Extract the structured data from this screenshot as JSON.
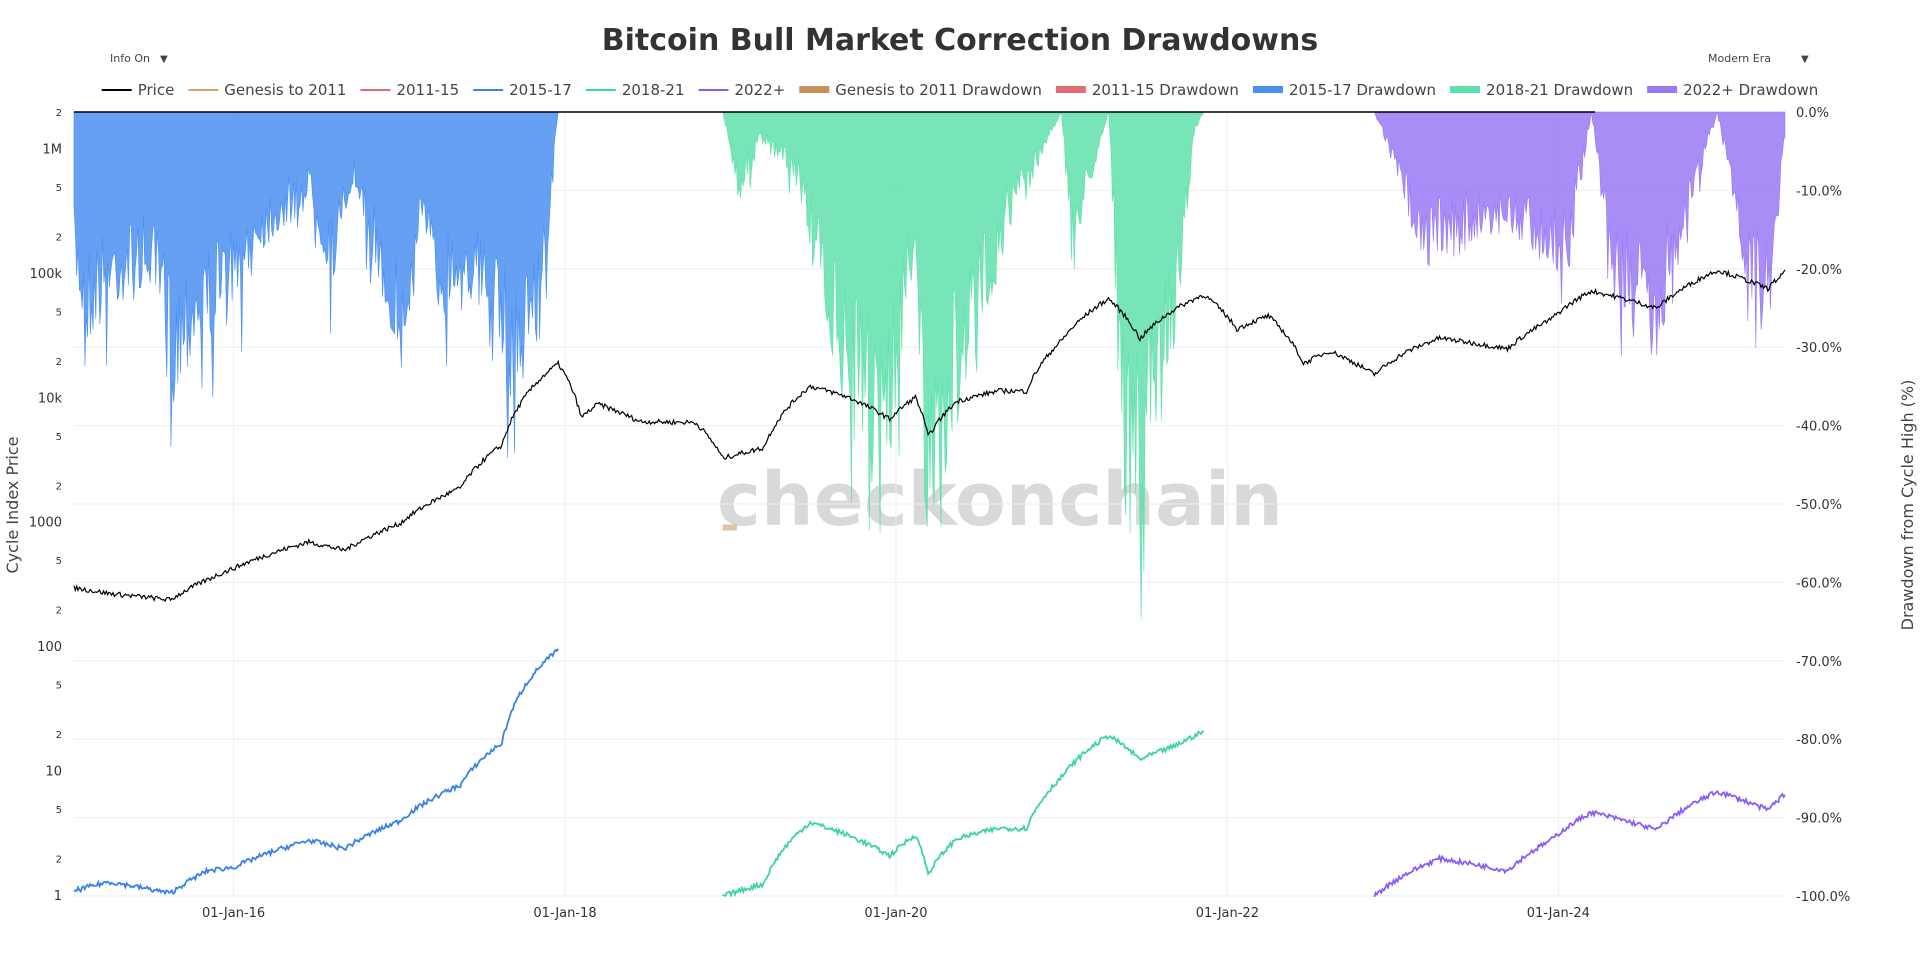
{
  "controls": {
    "left_dropdown": "Info On",
    "right_dropdown": "Modern Era",
    "dropdown_arrow": "▼"
  },
  "watermark": "checkonchain",
  "chart_data": {
    "type": "line",
    "title": "Bitcoin Bull Market Correction Drawdowns",
    "y_left_label": "Cycle Index Price",
    "y_right_label": "Drawdown from Cycle High (%)",
    "y_left_scale": "log",
    "y_left_range": [
      1,
      2000000
    ],
    "y_right_range": [
      -100,
      0
    ],
    "x_range": [
      "2015-01-14",
      "2025-05-15"
    ],
    "grid": true,
    "legend_position": "top-center",
    "x_ticks": [
      "01-Jan-16",
      "01-Jan-18",
      "01-Jan-20",
      "01-Jan-22",
      "01-Jan-24"
    ],
    "x_tick_dates": [
      "2016-01-01",
      "2018-01-01",
      "2020-01-01",
      "2022-01-01",
      "2024-01-01"
    ],
    "y_left_ticks": [
      "1",
      "2",
      "5",
      "10",
      "2",
      "5",
      "100",
      "2",
      "5",
      "1000",
      "2",
      "5",
      "10k",
      "2",
      "5",
      "100k",
      "2",
      "5",
      "1M",
      "2"
    ],
    "y_left_tick_values": [
      1,
      2,
      5,
      10,
      20,
      50,
      100,
      200,
      500,
      1000,
      2000,
      5000,
      10000,
      20000,
      50000,
      100000,
      200000,
      500000,
      1000000,
      2000000
    ],
    "y_right_ticks": [
      "0.0%",
      "-10.0%",
      "-20.0%",
      "-30.0%",
      "-40.0%",
      "-50.0%",
      "-60.0%",
      "-70.0%",
      "-80.0%",
      "-90.0%",
      "-100.0%"
    ],
    "y_right_tick_values": [
      0,
      -10,
      -20,
      -30,
      -40,
      -50,
      -60,
      -70,
      -80,
      -90,
      -100
    ],
    "legend": [
      {
        "label": "Price",
        "color": "#000000",
        "kind": "line"
      },
      {
        "label": "Genesis to 2011",
        "color": "#d9a06b",
        "kind": "line"
      },
      {
        "label": "2011-15",
        "color": "#e06c75",
        "kind": "line"
      },
      {
        "label": "2015-17",
        "color": "#3b82e8",
        "kind": "line"
      },
      {
        "label": "2018-21",
        "color": "#3ed59a",
        "kind": "line"
      },
      {
        "label": "2022+",
        "color": "#8b5cf6",
        "kind": "line"
      },
      {
        "label": "Genesis to 2011 Drawdown",
        "color": "#c9915a",
        "kind": "area"
      },
      {
        "label": "2011-15 Drawdown",
        "color": "#e06c75",
        "kind": "area"
      },
      {
        "label": "2015-17 Drawdown",
        "color": "#4a8ff0",
        "kind": "area"
      },
      {
        "label": "2018-21 Drawdown",
        "color": "#5fe0aa",
        "kind": "area"
      },
      {
        "label": "2022+ Drawdown",
        "color": "#9a79f5",
        "kind": "area"
      }
    ],
    "series": [
      {
        "name": "Price",
        "color": "#000000",
        "points": [
          [
            "2015-01-14",
            300
          ],
          [
            "2015-04-01",
            270
          ],
          [
            "2015-08-15",
            240
          ],
          [
            "2015-11-05",
            350
          ],
          [
            "2016-01-01",
            430
          ],
          [
            "2016-06-15",
            700
          ],
          [
            "2016-09-01",
            600
          ],
          [
            "2017-01-01",
            980
          ],
          [
            "2017-05-15",
            1900
          ],
          [
            "2017-08-15",
            4200
          ],
          [
            "2017-12-17",
            19000
          ],
          [
            "2018-02-06",
            7000
          ],
          [
            "2018-03-15",
            9000
          ],
          [
            "2018-06-15",
            6500
          ],
          [
            "2018-10-15",
            6400
          ],
          [
            "2018-12-15",
            3300
          ],
          [
            "2019-03-15",
            4000
          ],
          [
            "2019-06-26",
            12500
          ],
          [
            "2019-09-15",
            10300
          ],
          [
            "2019-12-18",
            6800
          ],
          [
            "2020-02-13",
            10200
          ],
          [
            "2020-03-12",
            4900
          ],
          [
            "2020-05-15",
            9500
          ],
          [
            "2020-08-15",
            11500
          ],
          [
            "2020-10-15",
            11400
          ],
          [
            "2020-12-31",
            29000
          ],
          [
            "2021-04-14",
            63000
          ],
          [
            "2021-06-22",
            30000
          ],
          [
            "2021-09-07",
            52000
          ],
          [
            "2021-11-10",
            68000
          ],
          [
            "2022-01-22",
            36000
          ],
          [
            "2022-04-01",
            46000
          ],
          [
            "2022-06-18",
            19000
          ],
          [
            "2022-08-15",
            24000
          ],
          [
            "2022-11-21",
            15500
          ],
          [
            "2023-01-30",
            23500
          ],
          [
            "2023-04-14",
            30500
          ],
          [
            "2023-09-11",
            25000
          ],
          [
            "2023-12-15",
            43000
          ],
          [
            "2024-03-14",
            73000
          ],
          [
            "2024-08-05",
            53000
          ],
          [
            "2024-12-17",
            107000
          ],
          [
            "2025-04-07",
            76000
          ],
          [
            "2025-05-15",
            103000
          ]
        ]
      },
      {
        "name": "2015-17",
        "color": "#3b82e8",
        "points": [
          [
            "2015-01-14",
            1.1
          ],
          [
            "2015-04-01",
            1.3
          ],
          [
            "2015-08-15",
            1.05
          ],
          [
            "2015-11-05",
            1.6
          ],
          [
            "2016-01-01",
            1.7
          ],
          [
            "2016-06-15",
            2.8
          ],
          [
            "2016-09-01",
            2.4
          ],
          [
            "2017-01-01",
            4.0
          ],
          [
            "2017-05-15",
            7.8
          ],
          [
            "2017-08-15",
            17
          ],
          [
            "2017-12-17",
            95
          ]
        ]
      },
      {
        "name": "2018-21",
        "color": "#3ed59a",
        "points": [
          [
            "2018-12-15",
            1.0
          ],
          [
            "2019-03-15",
            1.25
          ],
          [
            "2019-06-26",
            3.9
          ],
          [
            "2019-09-15",
            3.1
          ],
          [
            "2019-12-18",
            2.1
          ],
          [
            "2020-02-13",
            3.1
          ],
          [
            "2020-03-12",
            1.5
          ],
          [
            "2020-05-15",
            2.9
          ],
          [
            "2020-08-15",
            3.5
          ],
          [
            "2020-10-15",
            3.5
          ],
          [
            "2020-12-31",
            9.0
          ],
          [
            "2021-04-14",
            19.5
          ],
          [
            "2021-06-22",
            12.5
          ],
          [
            "2021-09-07",
            16.0
          ],
          [
            "2021-11-10",
            21.0
          ]
        ]
      },
      {
        "name": "2022+",
        "color": "#8b5cf6",
        "points": [
          [
            "2022-11-21",
            1.0
          ],
          [
            "2023-01-30",
            1.5
          ],
          [
            "2023-04-14",
            2.0
          ],
          [
            "2023-09-11",
            1.6
          ],
          [
            "2023-12-15",
            2.8
          ],
          [
            "2024-03-14",
            4.7
          ],
          [
            "2024-08-05",
            3.4
          ],
          [
            "2024-12-17",
            6.9
          ],
          [
            "2025-04-07",
            4.9
          ],
          [
            "2025-05-15",
            6.6
          ]
        ]
      },
      {
        "name": "Genesis to 2011 Drawdown",
        "color": "#c9915a",
        "area": true,
        "points": [
          [
            "2018-12-15",
            -53
          ],
          [
            "2019-01-15",
            -53.5
          ]
        ]
      },
      {
        "name": "2015-17 Drawdown",
        "color": "#4a8ff0",
        "area": true,
        "points": [
          [
            "2015-01-14",
            -22
          ],
          [
            "2015-02-10",
            -30
          ],
          [
            "2015-04-20",
            -25
          ],
          [
            "2015-07-01",
            -23
          ],
          [
            "2015-08-25",
            -38
          ],
          [
            "2015-09-15",
            -33
          ],
          [
            "2015-11-10",
            -30
          ],
          [
            "2016-01-16",
            -25
          ],
          [
            "2016-03-01",
            -18
          ],
          [
            "2016-06-20",
            -12
          ],
          [
            "2016-08-02",
            -23
          ],
          [
            "2016-09-20",
            -10
          ],
          [
            "2017-01-11",
            -36
          ],
          [
            "2017-02-20",
            -14
          ],
          [
            "2017-03-25",
            -28
          ],
          [
            "2017-05-27",
            -22
          ],
          [
            "2017-07-16",
            -31
          ],
          [
            "2017-09-15",
            -38
          ],
          [
            "2017-11-12",
            -27
          ],
          [
            "2017-12-17",
            0
          ]
        ]
      },
      {
        "name": "2018-21 Drawdown",
        "color": "#5fe0aa",
        "area": true,
        "points": [
          [
            "2018-12-15",
            0
          ],
          [
            "2019-01-20",
            -12
          ],
          [
            "2019-03-10",
            -4
          ],
          [
            "2019-06-01",
            -10
          ],
          [
            "2019-07-16",
            -25
          ],
          [
            "2019-09-25",
            -42
          ],
          [
            "2019-12-18",
            -46
          ],
          [
            "2020-02-13",
            -18
          ],
          [
            "2020-03-13",
            -67
          ],
          [
            "2020-05-10",
            -40
          ],
          [
            "2020-09-05",
            -16
          ],
          [
            "2020-12-31",
            0
          ],
          [
            "2021-01-22",
            -20
          ],
          [
            "2021-04-14",
            0
          ],
          [
            "2021-05-19",
            -53
          ],
          [
            "2021-06-22",
            -55
          ],
          [
            "2021-09-07",
            -30
          ],
          [
            "2021-10-20",
            -3
          ],
          [
            "2021-11-10",
            0
          ]
        ]
      },
      {
        "name": "2022+ Drawdown",
        "color": "#9a79f5",
        "area": true,
        "points": [
          [
            "2022-11-21",
            0
          ],
          [
            "2023-03-10",
            -20
          ],
          [
            "2023-06-15",
            -18
          ],
          [
            "2023-08-20",
            -16
          ],
          [
            "2024-01-23",
            -21
          ],
          [
            "2024-03-14",
            0
          ],
          [
            "2024-05-01",
            -25
          ],
          [
            "2024-08-05",
            -32
          ],
          [
            "2024-09-06",
            -23
          ],
          [
            "2024-12-17",
            0
          ],
          [
            "2025-02-28",
            -25
          ],
          [
            "2025-04-07",
            -30
          ],
          [
            "2025-05-15",
            -4
          ]
        ]
      }
    ]
  }
}
